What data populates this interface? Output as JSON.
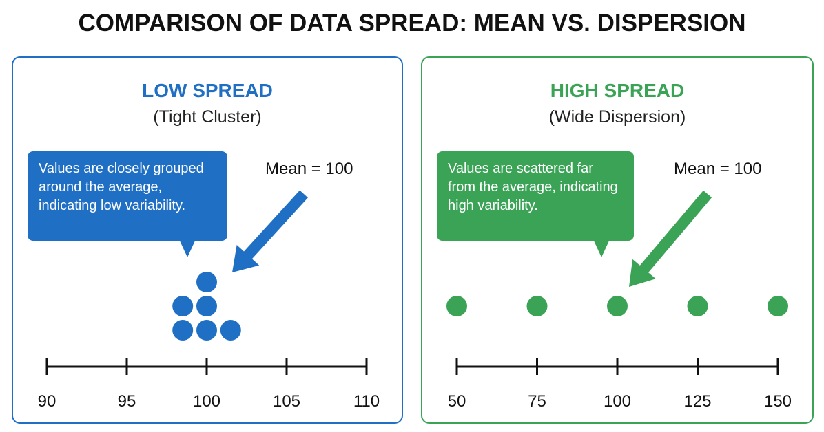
{
  "title": "COMPARISON OF DATA SPREAD: MEAN VS. DISPERSION",
  "colors": {
    "blue": "#1f6fc4",
    "green": "#3aa356",
    "text": "#111111"
  },
  "panels": {
    "left": {
      "heading": "LOW SPREAD",
      "subheading": "(Tight Cluster)",
      "callout": "Values are closely grouped around the average, indicating low variability.",
      "mean_label": "Mean = 100",
      "axis": {
        "min": 90,
        "max": 110,
        "ticks": [
          "90",
          "95",
          "100",
          "105",
          "110"
        ]
      },
      "points": [
        {
          "value": 98.5,
          "stack": 1
        },
        {
          "value": 100,
          "stack": 1
        },
        {
          "value": 101.5,
          "stack": 1
        },
        {
          "value": 98.5,
          "stack": 2
        },
        {
          "value": 100,
          "stack": 2
        },
        {
          "value": 100,
          "stack": 3
        }
      ]
    },
    "right": {
      "heading": "HIGH SPREAD",
      "subheading": "(Wide Dispersion)",
      "callout": "Values are scattered far from the average, indicating high variability.",
      "mean_label": "Mean = 100",
      "axis": {
        "min": 50,
        "max": 150,
        "ticks": [
          "50",
          "75",
          "100",
          "125",
          "150"
        ]
      },
      "points": [
        {
          "value": 50,
          "stack": 1
        },
        {
          "value": 75,
          "stack": 1
        },
        {
          "value": 100,
          "stack": 1
        },
        {
          "value": 125,
          "stack": 1
        },
        {
          "value": 150,
          "stack": 1
        }
      ]
    }
  }
}
